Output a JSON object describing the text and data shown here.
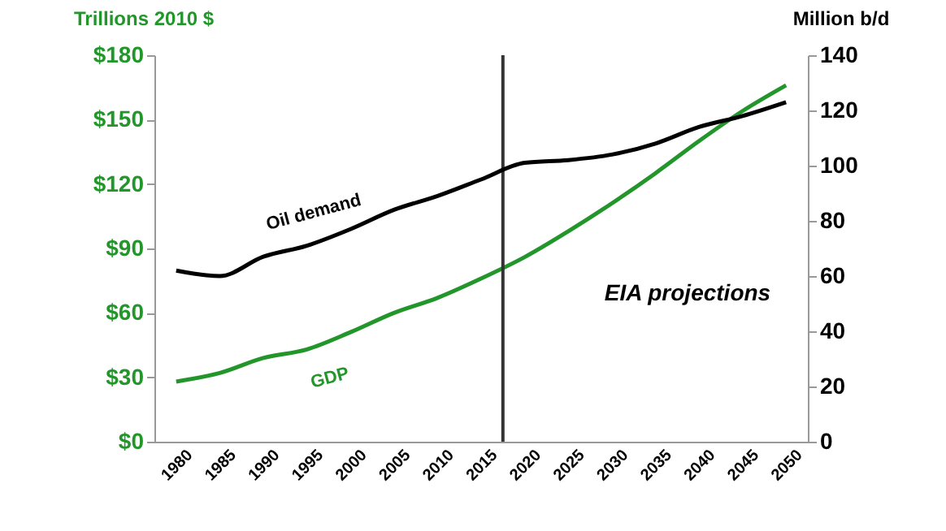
{
  "chart_data": {
    "type": "line",
    "ylabel": "Trillions 2010 $",
    "y2label": "Million b/d",
    "x": [
      1980,
      1985,
      1990,
      1995,
      2000,
      2005,
      2010,
      2015,
      2020,
      2025,
      2030,
      2035,
      2040,
      2045,
      2050
    ],
    "series": [
      {
        "name": "GDP",
        "color": "#22962a",
        "values": [
          28,
          32,
          39,
          43,
          51,
          60,
          67,
          76,
          86,
          98,
          111,
          125,
          140,
          154,
          166
        ]
      },
      {
        "name": "Oil demand",
        "color": "#000000",
        "axis": "y2",
        "values": [
          62,
          60,
          67,
          71,
          77,
          84,
          89,
          95,
          101,
          102,
          104,
          108,
          114,
          118,
          123
        ]
      }
    ],
    "xlim": [
      1977.5,
      2052.5
    ],
    "xticks": [
      1980,
      1985,
      1990,
      1995,
      2000,
      2005,
      2010,
      2015,
      2020,
      2025,
      2030,
      2035,
      2040,
      2045,
      2050
    ],
    "ylim": [
      0,
      180
    ],
    "yticks": [
      {
        "value": 0,
        "label": "$0"
      },
      {
        "value": 30,
        "label": "$30"
      },
      {
        "value": 60,
        "label": "$60"
      },
      {
        "value": 90,
        "label": "$90"
      },
      {
        "value": 120,
        "label": "$120"
      },
      {
        "value": 150,
        "label": "$150"
      },
      {
        "value": 180,
        "label": "$180"
      }
    ],
    "y2lim": [
      0,
      140
    ],
    "y2ticks": [
      0,
      20,
      40,
      60,
      80,
      100,
      120,
      140
    ],
    "ref_lines": [
      {
        "axis": "x",
        "value": 2017.5,
        "color": "#333333"
      }
    ],
    "annotations": [
      "EIA projections"
    ],
    "grid": false
  }
}
